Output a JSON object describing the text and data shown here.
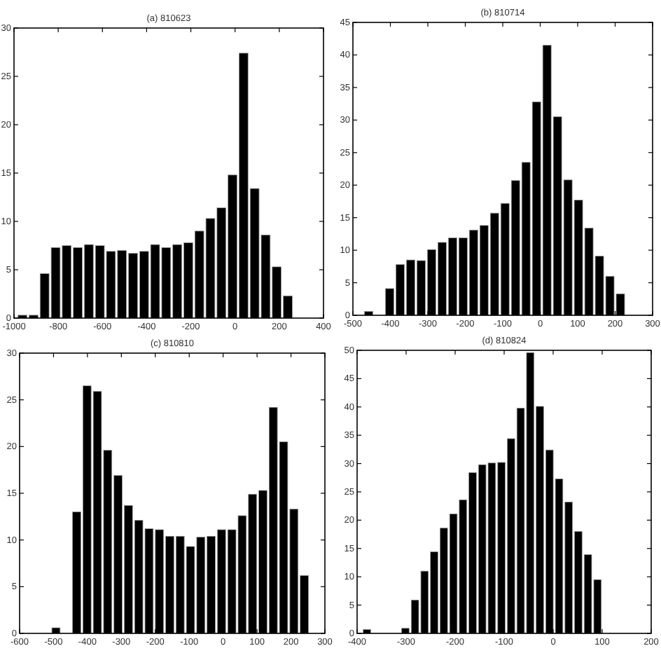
{
  "chart_data": [
    {
      "type": "histogram",
      "title": "(a) 810623",
      "color": "#000000",
      "xlim": [
        -1000,
        400
      ],
      "ylim": [
        0,
        30
      ],
      "xticks": [
        -1000,
        -800,
        -600,
        -400,
        -200,
        0,
        200,
        400
      ],
      "yticks": [
        0,
        5,
        10,
        15,
        20,
        25,
        30
      ],
      "bins": [
        -985,
        -935,
        -885,
        -835,
        -785,
        -735,
        -685,
        -635,
        -585,
        -535,
        -485,
        -435,
        -385,
        -335,
        -285,
        -235,
        -185,
        -135,
        -85,
        -35,
        15,
        65,
        115,
        165,
        215,
        265
      ],
      "values": [
        0.3,
        0.3,
        4.6,
        7.3,
        7.5,
        7.3,
        7.6,
        7.5,
        6.9,
        7.0,
        6.7,
        6.9,
        7.6,
        7.3,
        7.6,
        7.8,
        9.0,
        10.3,
        11.4,
        14.8,
        27.4,
        13.4,
        8.6,
        5.3,
        2.3
      ]
    },
    {
      "type": "histogram",
      "title": "(b) 810714",
      "color": "#000000",
      "xlim": [
        -500,
        300
      ],
      "ylim": [
        0,
        45
      ],
      "xticks": [
        -500,
        -400,
        -300,
        -200,
        -100,
        0,
        100,
        200,
        300
      ],
      "yticks": [
        0,
        5,
        10,
        15,
        20,
        25,
        30,
        35,
        40,
        45
      ],
      "bins": [
        -471,
        -443,
        -415,
        -387,
        -359,
        -331,
        -303,
        -275,
        -247,
        -219,
        -191,
        -163,
        -135,
        -107,
        -79,
        -51,
        -23,
        5,
        33,
        61,
        89,
        117,
        145,
        173,
        201,
        229
      ],
      "values": [
        0.6,
        0,
        4.1,
        7.8,
        8.5,
        8.4,
        10.1,
        11.2,
        11.9,
        11.9,
        13.1,
        13.8,
        15.7,
        17.2,
        20.7,
        23.5,
        32.8,
        41.5,
        30.5,
        20.8,
        17.7,
        13.4,
        9.1,
        6.0,
        3.3
      ]
    },
    {
      "type": "histogram",
      "title": "(c) 810810",
      "color": "#000000",
      "xlim": [
        -600,
        300
      ],
      "ylim": [
        0,
        30
      ],
      "xticks": [
        -600,
        -500,
        -400,
        -300,
        -200,
        -100,
        0,
        100,
        200,
        300
      ],
      "yticks": [
        0,
        5,
        10,
        15,
        20,
        25,
        30
      ],
      "bins": [
        -507,
        -476.5,
        -446,
        -415.5,
        -385,
        -354.5,
        -324,
        -293.5,
        -263,
        -232.5,
        -202,
        -171.5,
        -141,
        -110.5,
        -80,
        -49.5,
        -19,
        11.5,
        42,
        72.5,
        103,
        133.5,
        164,
        194.5,
        225,
        255.5
      ],
      "values": [
        0.6,
        0,
        13.0,
        26.5,
        25.9,
        19.6,
        16.9,
        13.7,
        12.1,
        11.2,
        11.1,
        10.4,
        10.4,
        9.3,
        10.3,
        10.4,
        11.1,
        11.1,
        12.6,
        14.9,
        15.3,
        24.2,
        20.5,
        13.3,
        6.2
      ]
    },
    {
      "type": "histogram",
      "title": "(d) 810824",
      "color": "#000000",
      "xlim": [
        -400,
        200
      ],
      "ylim": [
        0,
        50
      ],
      "xticks": [
        -400,
        -300,
        -200,
        -100,
        0,
        100,
        200
      ],
      "yticks": [
        0,
        5,
        10,
        15,
        20,
        25,
        30,
        35,
        40,
        45,
        50
      ],
      "bins": [
        -389,
        -369.4,
        -349.8,
        -330.2,
        -310.6,
        -291,
        -271.4,
        -251.8,
        -232.2,
        -212.6,
        -193,
        -173.4,
        -153.8,
        -134.2,
        -114.6,
        -95,
        -75.4,
        -55.8,
        -36.2,
        -16.6,
        3,
        22.6,
        42.2,
        61.8,
        81.4,
        101
      ],
      "values": [
        0.7,
        0,
        0,
        0,
        0.9,
        5.9,
        11.0,
        14.4,
        18.6,
        21.1,
        23.6,
        28.4,
        29.8,
        30.1,
        30.2,
        34.4,
        39.8,
        49.6,
        40.1,
        32.4,
        27.3,
        23.2,
        18.0,
        13.9,
        9.5
      ]
    }
  ]
}
